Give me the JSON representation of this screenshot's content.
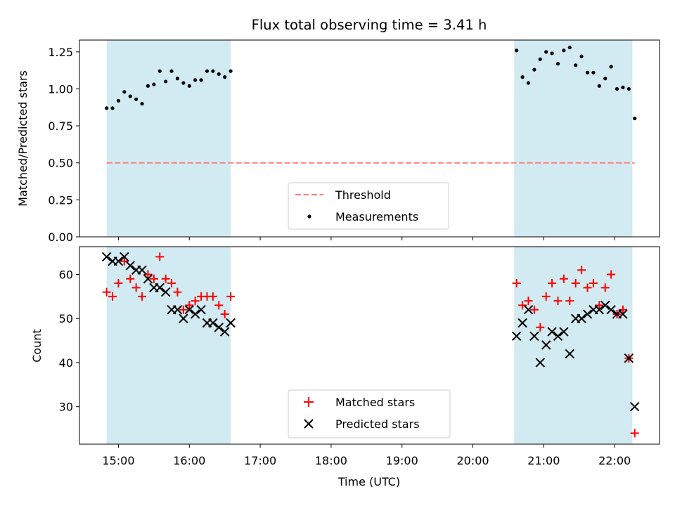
{
  "chart_data": {
    "type": "scatter",
    "title": "Flux total observing time = 3.41 h",
    "xlabel": "Time (UTC)",
    "x_ticks": [
      "15:00",
      "16:00",
      "17:00",
      "18:00",
      "19:00",
      "20:00",
      "21:00",
      "22:00"
    ],
    "x_range": [
      "14:27",
      "22:38"
    ],
    "shaded_intervals": [
      [
        "14:50",
        "16:35"
      ],
      [
        "20:35",
        "22:15"
      ]
    ],
    "shade_color": "#add8e6",
    "panels": [
      {
        "ylabel": "Matched/Predicted stars",
        "ylim": [
          0.0,
          1.33
        ],
        "y_ticks": [
          "0.00",
          "0.25",
          "0.50",
          "0.75",
          "1.00",
          "1.25"
        ],
        "legend_position": "lower center",
        "threshold": {
          "name": "Threshold",
          "value": 0.5,
          "color": "#ff7f7f",
          "style": "dashed"
        },
        "series": [
          {
            "name": "Measurements",
            "marker": "dot",
            "color": "#000000",
            "x": [
              "14:50",
              "14:55",
              "15:00",
              "15:05",
              "15:10",
              "15:15",
              "15:20",
              "15:25",
              "15:30",
              "15:35",
              "15:40",
              "15:45",
              "15:50",
              "15:55",
              "16:00",
              "16:05",
              "16:10",
              "16:15",
              "16:20",
              "16:25",
              "16:30",
              "16:35",
              "20:37",
              "20:42",
              "20:47",
              "20:52",
              "20:57",
              "21:02",
              "21:07",
              "21:12",
              "21:17",
              "21:22",
              "21:27",
              "21:32",
              "21:37",
              "21:42",
              "21:47",
              "21:52",
              "21:57",
              "22:02",
              "22:07",
              "22:12",
              "22:17"
            ],
            "y": [
              0.87,
              0.87,
              0.92,
              0.98,
              0.95,
              0.93,
              0.9,
              1.02,
              1.03,
              1.12,
              1.05,
              1.12,
              1.07,
              1.04,
              1.02,
              1.06,
              1.06,
              1.12,
              1.12,
              1.1,
              1.08,
              1.12,
              1.26,
              1.08,
              1.04,
              1.13,
              1.2,
              1.25,
              1.24,
              1.17,
              1.26,
              1.28,
              1.16,
              1.22,
              1.11,
              1.11,
              1.02,
              1.07,
              1.15,
              1.0,
              1.01,
              1.0,
              0.8
            ]
          }
        ]
      },
      {
        "ylabel": "Count",
        "ylim": [
          21.5,
          66.3
        ],
        "y_ticks": [
          "30",
          "40",
          "50",
          "60"
        ],
        "legend_position": "lower center",
        "series": [
          {
            "name": "Matched stars",
            "marker": "plus",
            "color": "#ff0000",
            "x": [
              "14:50",
              "14:55",
              "15:00",
              "15:05",
              "15:10",
              "15:15",
              "15:20",
              "15:25",
              "15:30",
              "15:35",
              "15:40",
              "15:45",
              "15:50",
              "15:55",
              "16:00",
              "16:05",
              "16:10",
              "16:15",
              "16:20",
              "16:25",
              "16:30",
              "16:35",
              "20:37",
              "20:42",
              "20:47",
              "20:52",
              "20:57",
              "21:02",
              "21:07",
              "21:12",
              "21:17",
              "21:22",
              "21:27",
              "21:32",
              "21:37",
              "21:42",
              "21:47",
              "21:52",
              "21:57",
              "22:02",
              "22:07",
              "22:12",
              "22:17"
            ],
            "y": [
              56,
              55,
              58,
              63,
              59,
              57,
              55,
              60,
              59,
              64,
              59,
              58,
              56,
              52,
              53,
              54,
              55,
              55,
              55,
              53,
              51,
              55,
              58,
              53,
              54,
              52,
              48,
              55,
              58,
              54,
              59,
              54,
              58,
              61,
              57,
              58,
              53,
              57,
              60,
              51,
              52,
              41,
              24
            ]
          },
          {
            "name": "Predicted stars",
            "marker": "x",
            "color": "#000000",
            "x": [
              "14:50",
              "14:55",
              "15:00",
              "15:05",
              "15:10",
              "15:15",
              "15:20",
              "15:25",
              "15:30",
              "15:35",
              "15:40",
              "15:45",
              "15:50",
              "15:55",
              "16:00",
              "16:05",
              "16:10",
              "16:15",
              "16:20",
              "16:25",
              "16:30",
              "16:35",
              "20:37",
              "20:42",
              "20:47",
              "20:52",
              "20:57",
              "21:02",
              "21:07",
              "21:12",
              "21:17",
              "21:22",
              "21:27",
              "21:32",
              "21:37",
              "21:42",
              "21:47",
              "21:52",
              "21:57",
              "22:02",
              "22:07",
              "22:12",
              "22:17"
            ],
            "y": [
              64,
              63,
              63,
              64,
              62,
              61,
              61,
              59,
              57,
              57,
              56,
              52,
              52,
              50,
              52,
              51,
              52,
              49,
              49,
              48,
              47,
              49,
              46,
              49,
              52,
              46,
              40,
              44,
              47,
              46,
              47,
              42,
              50,
              50,
              51,
              52,
              52,
              53,
              52,
              51,
              51,
              41,
              30
            ]
          }
        ]
      }
    ]
  }
}
